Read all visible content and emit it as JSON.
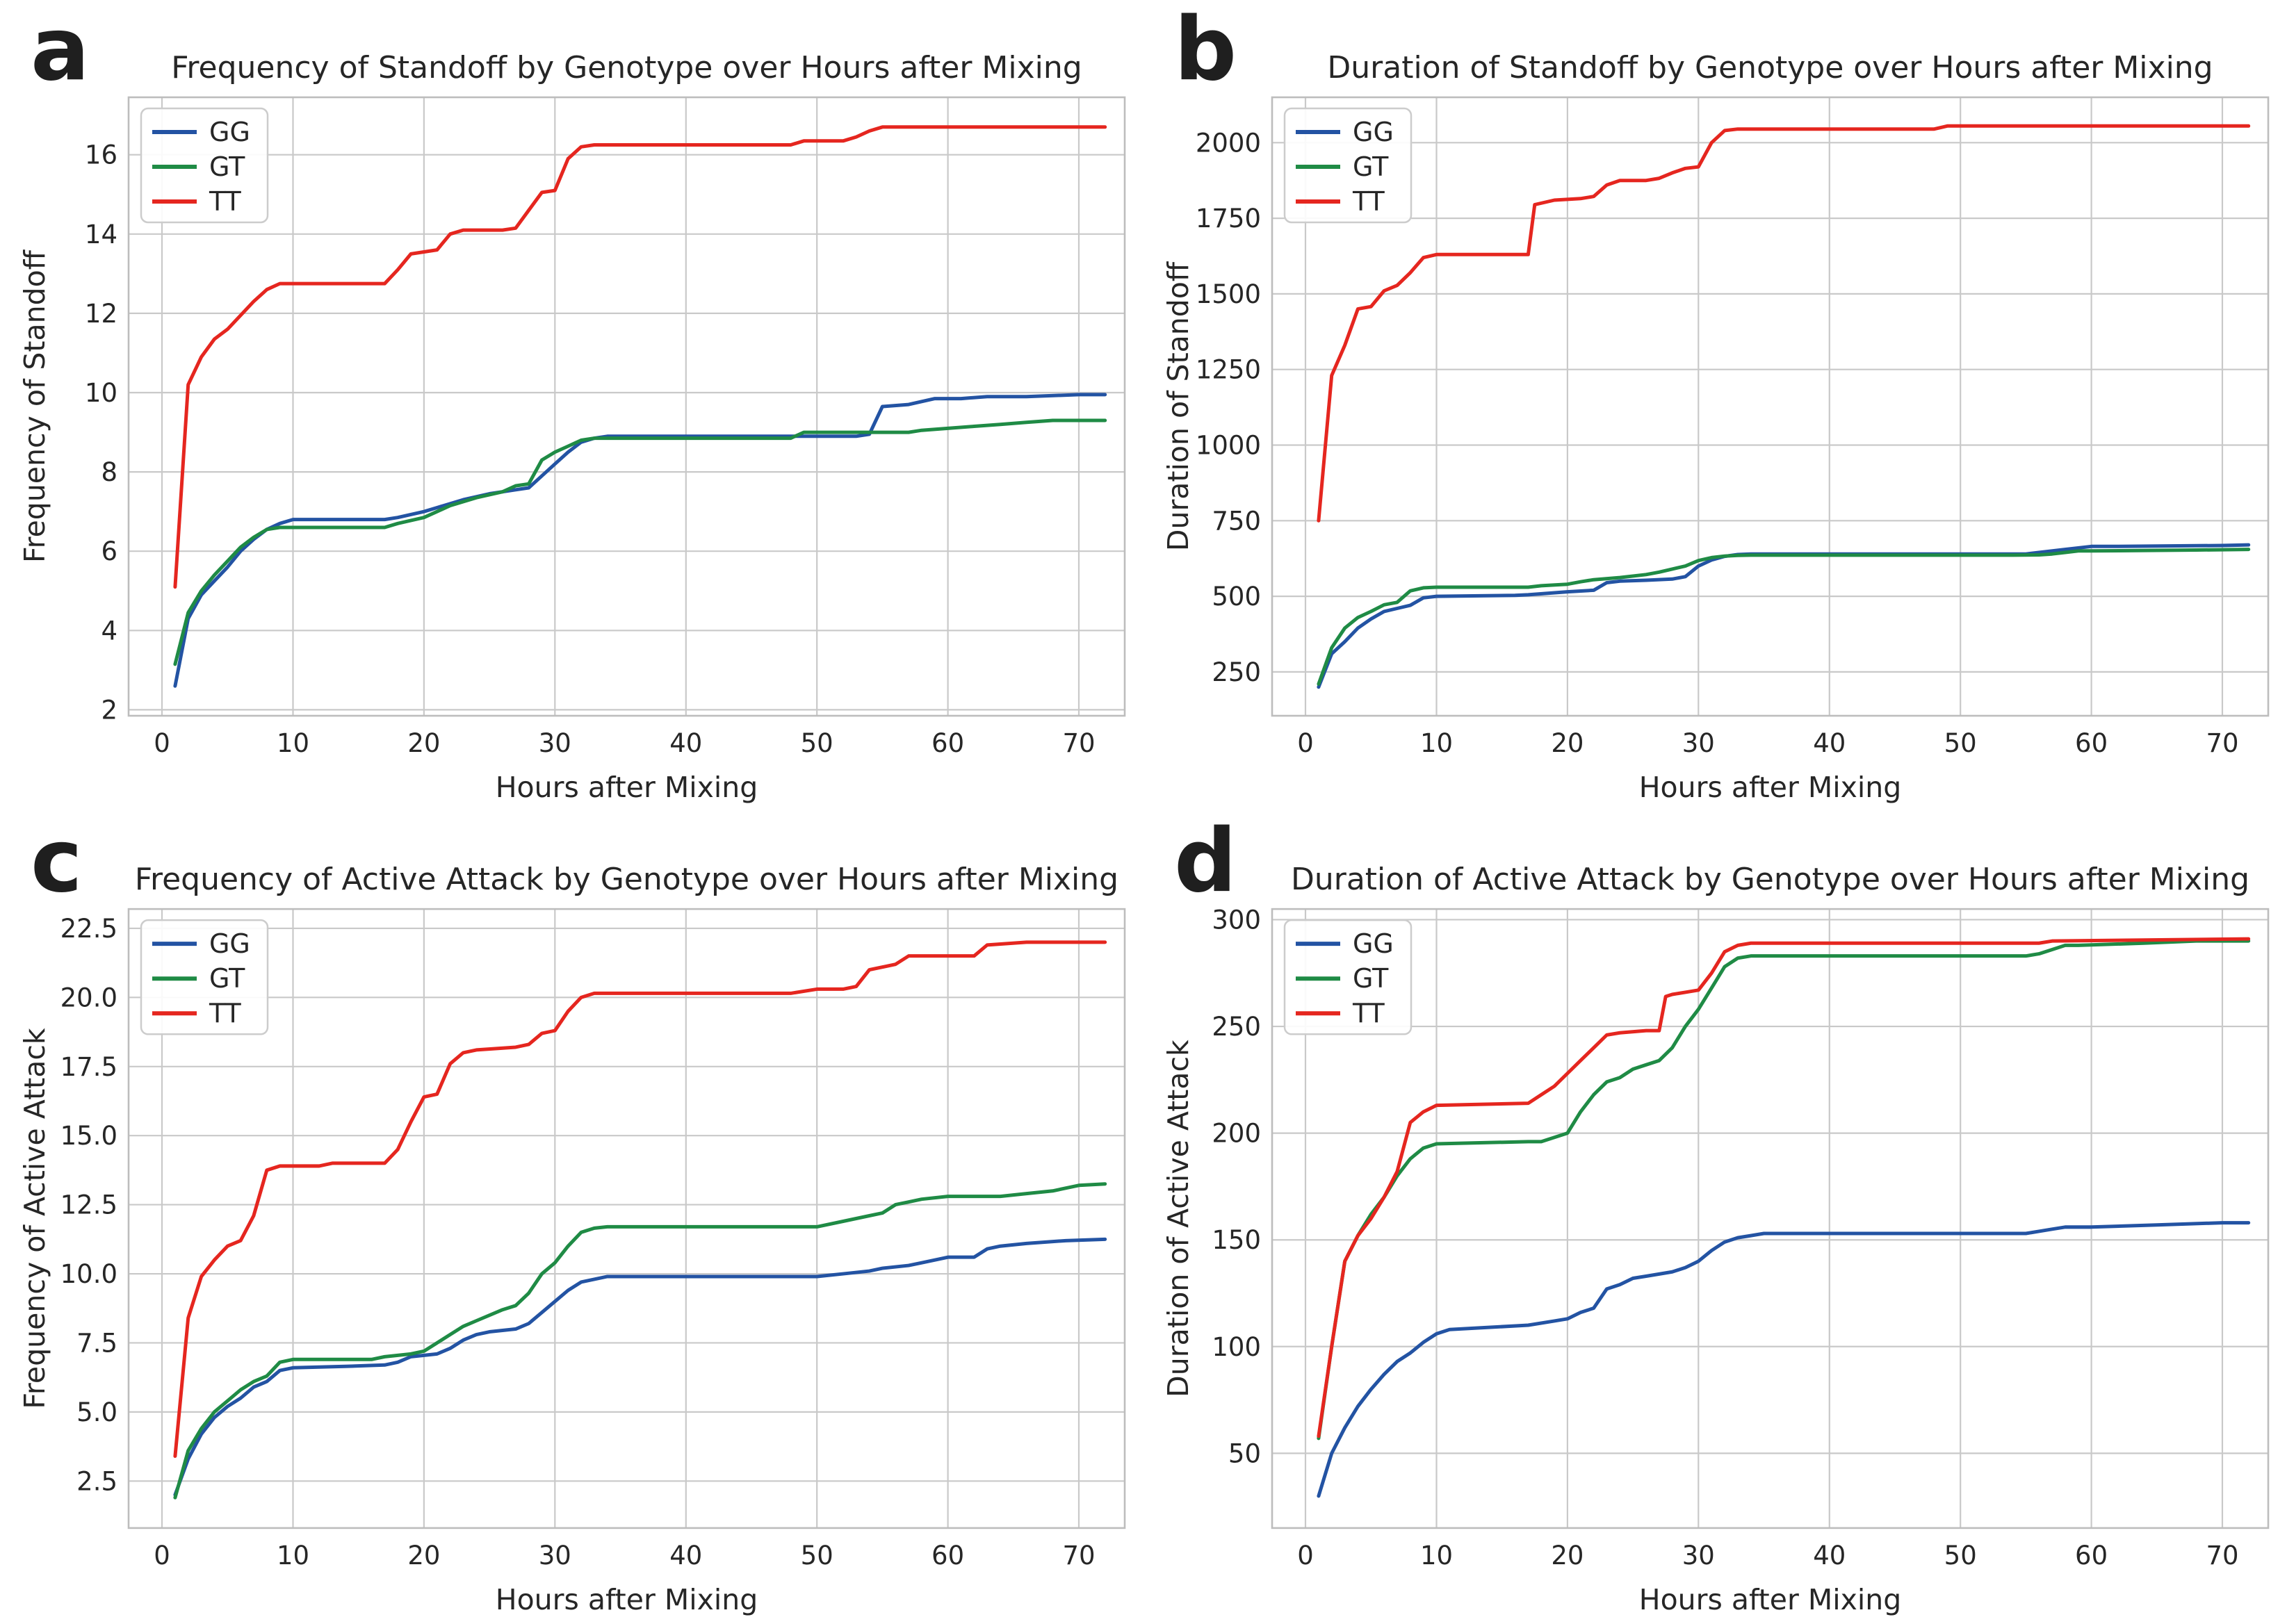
{
  "theme": {
    "background": "#ffffff",
    "text_color": "#262626",
    "panel_letter_color": "#1f1f1f",
    "grid_color": "#c9c9c9",
    "spine_color": "#bdbdbd",
    "legend_border_color": "#cccccc",
    "series_colors": {
      "GG": "#2353a3",
      "GT": "#1f8b45",
      "TT": "#e5261f"
    }
  },
  "chart_data": [
    {
      "type": "line",
      "panel_label": "a",
      "title": "Frequency of Standoff by Genotype over Hours after Mixing",
      "xlabel": "Hours after Mixing",
      "ylabel": "Frequency of Standoff",
      "xlim": [
        -2.55,
        73.5
      ],
      "ylim": [
        1.85,
        17.45
      ],
      "xticks": [
        0,
        10,
        20,
        30,
        40,
        50,
        60,
        70
      ],
      "xtick_labels": [
        "0",
        "10",
        "20",
        "30",
        "40",
        "50",
        "60",
        "70"
      ],
      "yticks": [
        2,
        4,
        6,
        8,
        10,
        12,
        14,
        16
      ],
      "ytick_labels": [
        "2",
        "4",
        "6",
        "8",
        "10",
        "12",
        "14",
        "16"
      ],
      "grid": true,
      "legend_position": "upper left",
      "legend": [
        "GG",
        "GT",
        "TT"
      ],
      "series": [
        {
          "name": "GG",
          "x": [
            1,
            2,
            3,
            4,
            5,
            6,
            7,
            8,
            9,
            10,
            17,
            18,
            20,
            21,
            23,
            25,
            27,
            28,
            29,
            30,
            31,
            32,
            33,
            34,
            53,
            54,
            55,
            57,
            59,
            61,
            63,
            66,
            70,
            72
          ],
          "y": [
            2.6,
            4.3,
            4.9,
            5.25,
            5.6,
            6.0,
            6.3,
            6.55,
            6.7,
            6.8,
            6.8,
            6.85,
            7.0,
            7.1,
            7.3,
            7.45,
            7.55,
            7.6,
            7.9,
            8.2,
            8.5,
            8.75,
            8.85,
            8.9,
            8.9,
            8.95,
            9.65,
            9.7,
            9.85,
            9.85,
            9.9,
            9.9,
            9.95,
            9.95
          ]
        },
        {
          "name": "GT",
          "x": [
            1,
            2,
            3,
            4,
            5,
            6,
            7,
            8,
            9,
            10,
            17,
            18,
            20,
            21,
            22,
            24,
            26,
            27,
            28,
            29,
            30,
            31,
            32,
            33,
            34,
            48,
            49,
            53,
            57,
            58,
            60,
            62,
            64,
            66,
            68,
            72
          ],
          "y": [
            3.15,
            4.45,
            5.0,
            5.4,
            5.75,
            6.1,
            6.35,
            6.55,
            6.6,
            6.6,
            6.6,
            6.7,
            6.85,
            7.0,
            7.15,
            7.35,
            7.5,
            7.65,
            7.7,
            8.3,
            8.5,
            8.65,
            8.8,
            8.85,
            8.85,
            8.85,
            9.0,
            9.0,
            9.0,
            9.05,
            9.1,
            9.15,
            9.2,
            9.25,
            9.3,
            9.3
          ]
        },
        {
          "name": "TT",
          "x": [
            1,
            2,
            3,
            4,
            5,
            6,
            7,
            8,
            9,
            17,
            18,
            19,
            21,
            22,
            23,
            26,
            27,
            28,
            29,
            30,
            31,
            32,
            33,
            48,
            49,
            52,
            53,
            54,
            55,
            72
          ],
          "y": [
            5.1,
            10.2,
            10.9,
            11.35,
            11.6,
            11.95,
            12.3,
            12.6,
            12.75,
            12.75,
            13.1,
            13.5,
            13.6,
            14.0,
            14.1,
            14.1,
            14.15,
            14.6,
            15.05,
            15.1,
            15.9,
            16.2,
            16.25,
            16.25,
            16.35,
            16.35,
            16.45,
            16.6,
            16.7,
            16.7
          ]
        }
      ]
    },
    {
      "type": "line",
      "panel_label": "b",
      "title": "Duration of Standoff by Genotype over Hours after Mixing",
      "xlabel": "Hours after Mixing",
      "ylabel": "Duration of Standoff",
      "xlim": [
        -2.55,
        73.5
      ],
      "ylim": [
        105,
        2150
      ],
      "xticks": [
        0,
        10,
        20,
        30,
        40,
        50,
        60,
        70
      ],
      "xtick_labels": [
        "0",
        "10",
        "20",
        "30",
        "40",
        "50",
        "60",
        "70"
      ],
      "yticks": [
        250,
        500,
        750,
        1000,
        1250,
        1500,
        1750,
        2000
      ],
      "ytick_labels": [
        "250",
        "500",
        "750",
        "1000",
        "1250",
        "1500",
        "1750",
        "2000"
      ],
      "grid": true,
      "legend_position": "upper left",
      "legend": [
        "GG",
        "GT",
        "TT"
      ],
      "series": [
        {
          "name": "GG",
          "x": [
            1,
            2,
            3,
            4,
            5,
            6,
            7,
            8,
            9,
            10,
            16,
            17,
            20,
            22,
            23,
            24,
            26,
            28,
            29,
            30,
            31,
            32,
            33,
            34,
            55,
            56,
            58,
            60,
            62,
            70,
            72
          ],
          "y": [
            200,
            310,
            350,
            395,
            425,
            450,
            460,
            470,
            495,
            500,
            503,
            505,
            515,
            520,
            545,
            550,
            553,
            557,
            565,
            600,
            620,
            632,
            638,
            640,
            640,
            645,
            655,
            665,
            665,
            668,
            670
          ]
        },
        {
          "name": "GT",
          "x": [
            1,
            2,
            3,
            4,
            5,
            6,
            7,
            8,
            9,
            10,
            17,
            18,
            20,
            21,
            22,
            24,
            26,
            27,
            28,
            29,
            30,
            31,
            32,
            33,
            34,
            54,
            56,
            57,
            58,
            59,
            60,
            68,
            72
          ],
          "y": [
            210,
            330,
            395,
            430,
            450,
            472,
            480,
            518,
            528,
            530,
            530,
            535,
            540,
            548,
            555,
            562,
            572,
            580,
            590,
            600,
            618,
            628,
            633,
            635,
            636,
            636,
            637,
            640,
            645,
            650,
            650,
            653,
            655
          ]
        },
        {
          "name": "TT",
          "x": [
            1,
            2,
            3,
            4,
            5,
            6,
            7,
            8,
            9,
            10,
            17,
            17.5,
            19,
            21,
            22,
            23,
            24,
            26,
            27,
            28,
            29,
            30,
            31,
            32,
            33,
            48,
            49,
            72
          ],
          "y": [
            750,
            1230,
            1330,
            1450,
            1458,
            1510,
            1528,
            1570,
            1620,
            1630,
            1630,
            1795,
            1810,
            1815,
            1822,
            1860,
            1875,
            1875,
            1882,
            1900,
            1915,
            1920,
            2000,
            2040,
            2045,
            2045,
            2055,
            2055
          ]
        }
      ]
    },
    {
      "type": "line",
      "panel_label": "c",
      "title": "Frequency of Active Attack by Genotype over Hours after Mixing",
      "xlabel": "Hours after Mixing",
      "ylabel": "Frequency of Active Attack",
      "xlim": [
        -2.55,
        73.5
      ],
      "ylim": [
        0.8,
        23.2
      ],
      "xticks": [
        0,
        10,
        20,
        30,
        40,
        50,
        60,
        70
      ],
      "xtick_labels": [
        "0",
        "10",
        "20",
        "30",
        "40",
        "50",
        "60",
        "70"
      ],
      "yticks": [
        2.5,
        5.0,
        7.5,
        10.0,
        12.5,
        15.0,
        17.5,
        20.0,
        22.5
      ],
      "ytick_labels": [
        "2.5",
        "5.0",
        "7.5",
        "10.0",
        "12.5",
        "15.0",
        "17.5",
        "20.0",
        "22.5"
      ],
      "grid": true,
      "legend_position": "upper left",
      "legend": [
        "GG",
        "GT",
        "TT"
      ],
      "series": [
        {
          "name": "GG",
          "x": [
            1,
            2,
            3,
            4,
            5,
            6,
            7,
            8,
            9,
            10,
            14,
            17,
            18,
            19,
            21,
            22,
            23,
            24,
            25,
            27,
            28,
            29,
            30,
            31,
            32,
            33,
            34,
            50,
            52,
            54,
            55,
            57,
            58,
            59,
            60,
            62,
            63,
            64,
            66,
            69,
            72
          ],
          "y": [
            2.0,
            3.3,
            4.2,
            4.8,
            5.2,
            5.5,
            5.9,
            6.1,
            6.5,
            6.6,
            6.65,
            6.7,
            6.8,
            7.0,
            7.1,
            7.3,
            7.6,
            7.8,
            7.9,
            8.0,
            8.2,
            8.6,
            9.0,
            9.4,
            9.7,
            9.8,
            9.9,
            9.9,
            10.0,
            10.1,
            10.2,
            10.3,
            10.4,
            10.5,
            10.6,
            10.6,
            10.9,
            11.0,
            11.1,
            11.2,
            11.25
          ]
        },
        {
          "name": "GT",
          "x": [
            1,
            2,
            3,
            4,
            5,
            6,
            7,
            8,
            9,
            10,
            16,
            17,
            19,
            20,
            21,
            22,
            23,
            24,
            25,
            26,
            27,
            28,
            29,
            30,
            31,
            32,
            33,
            34,
            50,
            52,
            53,
            54,
            55,
            56,
            57,
            58,
            60,
            64,
            66,
            68,
            70,
            72
          ],
          "y": [
            1.9,
            3.6,
            4.4,
            5.0,
            5.4,
            5.8,
            6.1,
            6.3,
            6.8,
            6.9,
            6.9,
            7.0,
            7.1,
            7.2,
            7.5,
            7.8,
            8.1,
            8.3,
            8.5,
            8.7,
            8.85,
            9.3,
            10.0,
            10.4,
            11.0,
            11.5,
            11.65,
            11.7,
            11.7,
            11.9,
            12.0,
            12.1,
            12.2,
            12.5,
            12.6,
            12.7,
            12.8,
            12.8,
            12.9,
            13.0,
            13.2,
            13.25
          ]
        },
        {
          "name": "TT",
          "x": [
            1,
            2,
            3,
            4,
            5,
            6,
            7,
            8,
            9,
            12,
            13,
            17,
            18,
            19,
            20,
            21,
            22,
            23,
            24,
            27,
            28,
            29,
            30,
            31,
            32,
            33,
            48,
            50,
            52,
            53,
            54,
            56,
            57,
            58,
            62,
            63,
            66,
            72
          ],
          "y": [
            3.4,
            8.4,
            9.9,
            10.5,
            11.0,
            11.2,
            12.1,
            13.75,
            13.9,
            13.9,
            14.0,
            14.0,
            14.5,
            15.5,
            16.4,
            16.5,
            17.6,
            18.0,
            18.1,
            18.2,
            18.3,
            18.7,
            18.8,
            19.5,
            20.0,
            20.15,
            20.15,
            20.3,
            20.3,
            20.4,
            21.0,
            21.2,
            21.5,
            21.5,
            21.5,
            21.9,
            22.0,
            22.0
          ]
        }
      ]
    },
    {
      "type": "line",
      "panel_label": "d",
      "title": "Duration of Active Attack by Genotype over Hours after Mixing",
      "xlabel": "Hours after Mixing",
      "ylabel": "Duration of Active Attack",
      "xlim": [
        -2.55,
        73.5
      ],
      "ylim": [
        15,
        305
      ],
      "xticks": [
        0,
        10,
        20,
        30,
        40,
        50,
        60,
        70
      ],
      "xtick_labels": [
        "0",
        "10",
        "20",
        "30",
        "40",
        "50",
        "60",
        "70"
      ],
      "yticks": [
        50,
        100,
        150,
        200,
        250,
        300
      ],
      "ytick_labels": [
        "50",
        "100",
        "150",
        "200",
        "250",
        "300"
      ],
      "grid": true,
      "legend_position": "upper left",
      "legend": [
        "GG",
        "GT",
        "TT"
      ],
      "series": [
        {
          "name": "GG",
          "x": [
            1,
            2,
            3,
            4,
            5,
            6,
            7,
            8,
            9,
            10,
            11,
            14,
            17,
            19,
            20,
            21,
            22,
            23,
            24,
            25,
            26,
            28,
            29,
            30,
            31,
            32,
            33,
            34,
            35,
            55,
            56,
            57,
            58,
            60,
            65,
            70,
            72
          ],
          "y": [
            30,
            50,
            62,
            72,
            80,
            87,
            93,
            97,
            102,
            106,
            108,
            109,
            110,
            112,
            113,
            116,
            118,
            127,
            129,
            132,
            133,
            135,
            137,
            140,
            145,
            149,
            151,
            152,
            153,
            153,
            154,
            155,
            156,
            156,
            157,
            158,
            158
          ]
        },
        {
          "name": "GT",
          "x": [
            1,
            2,
            3,
            4,
            5,
            6,
            7,
            8,
            9,
            10,
            17,
            18,
            19,
            20,
            21,
            22,
            23,
            24,
            25,
            26,
            27,
            28,
            29,
            30,
            31,
            32,
            33,
            34,
            55,
            56,
            57,
            58,
            59,
            64,
            68,
            72
          ],
          "y": [
            57,
            100,
            140,
            152,
            162,
            170,
            180,
            188,
            193,
            195,
            196,
            196,
            198,
            200,
            210,
            218,
            224,
            226,
            230,
            232,
            234,
            240,
            250,
            258,
            268,
            278,
            282,
            283,
            283,
            284,
            286,
            288,
            288,
            289,
            290,
            290
          ]
        },
        {
          "name": "TT",
          "x": [
            1,
            2,
            3,
            4,
            5,
            6,
            7,
            8,
            9,
            10,
            17,
            18,
            19,
            20,
            21,
            22,
            23,
            24,
            26,
            27,
            27.5,
            28,
            29,
            30,
            31,
            32,
            33,
            34,
            56,
            57,
            72
          ],
          "y": [
            58,
            100,
            140,
            152,
            160,
            170,
            182,
            205,
            210,
            213,
            214,
            218,
            222,
            228,
            234,
            240,
            246,
            247,
            248,
            248,
            264,
            265,
            266,
            267,
            275,
            285,
            288,
            289,
            289,
            290,
            291
          ]
        }
      ]
    }
  ]
}
